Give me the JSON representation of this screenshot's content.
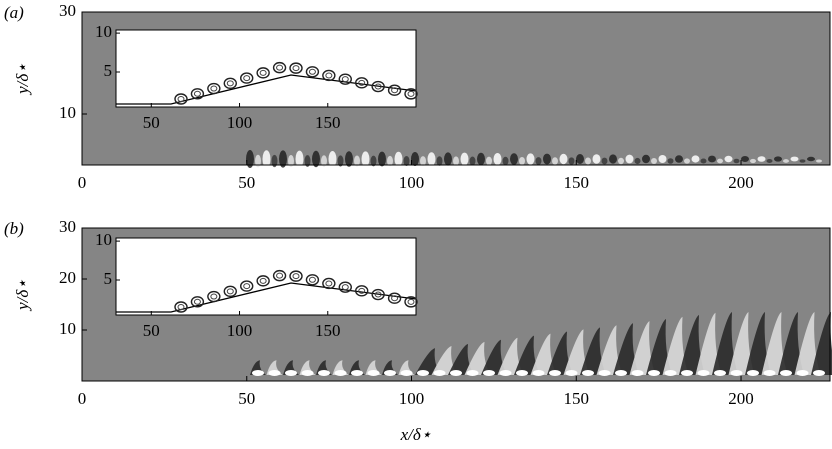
{
  "chart_data": [
    {
      "type": "contour",
      "panel_label": "(a)",
      "ylabel": "y/δ⋆",
      "xlim": [
        0,
        227
      ],
      "ylim": [
        0,
        30
      ],
      "xticks": [
        0,
        50,
        100,
        150,
        200
      ],
      "yticks": [
        10,
        30
      ],
      "inset": {
        "xlim": [
          30,
          200
        ],
        "ylim": [
          0.5,
          10.4
        ],
        "xticks": [
          50,
          100,
          150
        ],
        "yticks": [
          5,
          10
        ]
      }
    },
    {
      "type": "contour",
      "panel_label": "(b)",
      "ylabel": "y/δ⋆",
      "xlabel": "x/δ⋆",
      "xlim": [
        0,
        227
      ],
      "ylim": [
        0,
        30
      ],
      "xticks": [
        0,
        50,
        100,
        150,
        200
      ],
      "yticks": [
        10,
        20,
        30
      ],
      "inset": {
        "xlim": [
          30,
          200
        ],
        "ylim": [
          0.5,
          10.4
        ],
        "xticks": [
          50,
          100,
          150
        ],
        "yticks": [
          5,
          10
        ]
      }
    }
  ]
}
